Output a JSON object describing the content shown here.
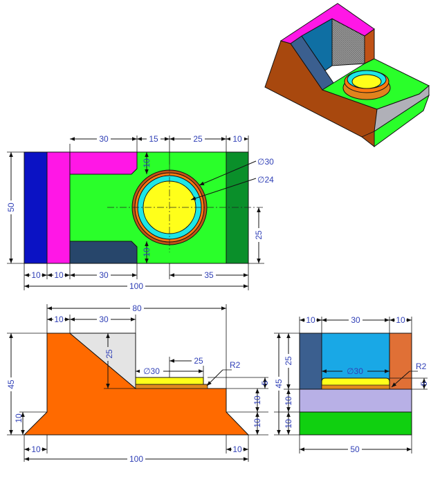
{
  "colors": {
    "blue": "#0b12c4",
    "magenta": "#ff17e6",
    "green": "#2aff2a",
    "dark_green": "#0a8f2a",
    "navy": "#27466b",
    "yellow": "#ffff1a",
    "cyan": "#1ee6e6",
    "orange": "#ff6a00",
    "rust": "#c05216",
    "brown": "#a8480e",
    "sky": "#19a8e6",
    "gray": "#e4e4e4",
    "lavender": "#b8b0e6",
    "dim_text": "#2f3fb6"
  },
  "top_view": {
    "d_30": "30",
    "d_15": "15",
    "d_25": "25",
    "d_10_top": "10",
    "d_phi30": "∅30",
    "d_phi24": "∅24",
    "d_50": "50",
    "d_25_right": "25",
    "d_10_inner_top": "10",
    "d_10_inner_bottom": "10",
    "b_10a": "10",
    "b_10b": "10",
    "b_30": "30",
    "b_35": "35",
    "b_100": "100"
  },
  "front_view": {
    "d_80": "80",
    "d_10": "10",
    "d_30": "30",
    "d_25_v": "25",
    "d_phi30": "∅30",
    "d_25": "25",
    "d_R2": "R2",
    "d_45": "45",
    "d_10_left": "10",
    "d_5": "5",
    "d_10_r1": "10",
    "d_10_r2": "10",
    "b_10_left": "10",
    "b_10_right": "10",
    "b_100": "100"
  },
  "side_view": {
    "d_10a": "10",
    "d_30": "30",
    "d_10b": "10",
    "d_25": "25",
    "d_phi30": "∅30",
    "d_R2": "R2",
    "d_45": "45",
    "d_10_1": "10",
    "d_10_2": "10",
    "d_5": "5",
    "b_50": "50"
  }
}
